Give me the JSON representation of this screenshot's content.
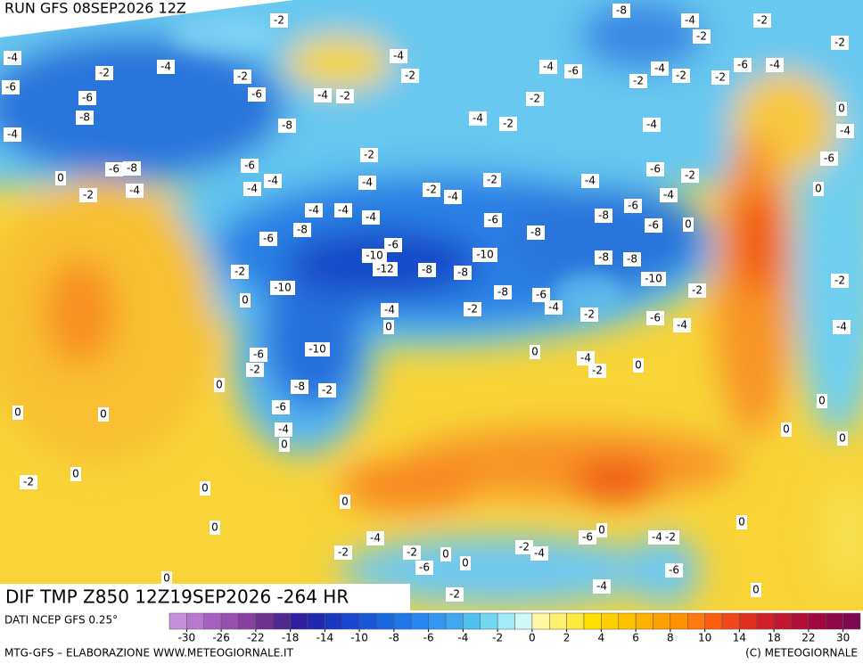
{
  "header": {
    "run": "RUN GFS 08SEP2026 12Z"
  },
  "map": {
    "field_label": "DIF TMP Z850 12Z19SEP2026 -264 HR",
    "labels": [
      "-2",
      "-8",
      "-4",
      "-2",
      "-2",
      "-2",
      "-4",
      "-4",
      "-2",
      "-6",
      "-2",
      "-4",
      "-2",
      "-4",
      "-6",
      "-4",
      "-6",
      "-4",
      "-2",
      "-2",
      "-2",
      "-6",
      "-6",
      "-4",
      "-2",
      "-2",
      "-8",
      "-8",
      "-4",
      "-2",
      "-4",
      "-4",
      "-2",
      "-6",
      "-8",
      "-6",
      "-6",
      "-2",
      "0",
      "-4",
      "-4",
      "-2",
      "-2",
      "-4",
      "-4",
      "-2",
      "-4",
      "-4",
      "-4",
      "-6",
      "-4",
      "-4",
      "-4",
      "-6",
      "-8",
      "-6",
      "-8",
      "-6",
      "-8",
      "-6",
      "-10",
      "-10",
      "-12",
      "-8",
      "-8",
      "-8",
      "-8",
      "-10",
      "-2",
      "-10",
      "-8",
      "-6",
      "-2",
      "0",
      "-4",
      "-2",
      "-4",
      "-2",
      "-6",
      "-4",
      "0",
      "-10",
      "-6",
      "-2",
      "0",
      "-4",
      "-2",
      "0",
      "-8",
      "-2",
      "0",
      "-6",
      "0",
      "0",
      "-4",
      "0",
      "0",
      "-2",
      "0",
      "0",
      "0",
      "-4",
      "-6",
      "0",
      "-4",
      "-2",
      "0",
      "-2",
      "-2",
      "0",
      "-2",
      "-4",
      "-6",
      "0",
      "0",
      "-6",
      "-4",
      "-2",
      "0",
      "0",
      "0",
      "0",
      "-2",
      "-4",
      "0",
      "-6",
      "-4",
      "0",
      "0"
    ]
  },
  "legend": {
    "source": "DATI NCEP GFS 0.25°",
    "colors": [
      "#c690d8",
      "#b878cc",
      "#a860c0",
      "#9850b0",
      "#8840a0",
      "#703090",
      "#502890",
      "#3020a0",
      "#2028b0",
      "#1838c0",
      "#1848d0",
      "#1858d8",
      "#1868e0",
      "#2078e8",
      "#2888f0",
      "#3098f0",
      "#40a8f0",
      "#50c0f0",
      "#70d8f0",
      "#a0ecf8",
      "#d0f8f8",
      "#fff8a0",
      "#fff070",
      "#ffe840",
      "#ffe000",
      "#ffd000",
      "#ffc000",
      "#ffb000",
      "#ffa000",
      "#ff9000",
      "#ff7810",
      "#f86010",
      "#f04818",
      "#e03020",
      "#d02028",
      "#c01830",
      "#b01038",
      "#a00840",
      "#900848",
      "#800850"
    ],
    "ticks": [
      -30,
      -26,
      -22,
      -18,
      -14,
      -10,
      -8,
      -6,
      -4,
      -2,
      0,
      2,
      4,
      6,
      8,
      10,
      14,
      18,
      22,
      30
    ]
  },
  "footer": {
    "left": "MTG-GFS – ELABORAZIONE WWW.METEOGIORNALE.IT",
    "right": "(C) METEOGIORNALE"
  }
}
